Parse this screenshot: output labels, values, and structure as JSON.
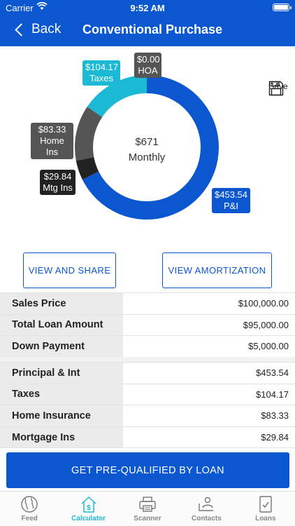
{
  "status_bar": {
    "carrier": "Carrier",
    "time": "9:52 AM"
  },
  "header": {
    "back_label": "Back",
    "title": "Conventional Purchase"
  },
  "chart_data": {
    "type": "pie",
    "center_value": "$671",
    "center_label": "Monthly",
    "slices": [
      {
        "name": "P&I",
        "label": "$453.54",
        "value": 453.54,
        "color": "#0a57cf"
      },
      {
        "name": "Mtg Ins",
        "label": "$29.84",
        "value": 29.84,
        "color": "#222222"
      },
      {
        "name": "Home Ins",
        "label": "$83.33",
        "value": 83.33,
        "color": "#555555"
      },
      {
        "name": "Taxes",
        "label": "$104.17",
        "value": 104.17,
        "color": "#1cb9d5"
      },
      {
        "name": "HOA",
        "label": "$0.00",
        "value": 0.0,
        "color": "#555555"
      }
    ]
  },
  "save_label": "Save",
  "buttons": {
    "view_share": "VIEW AND SHARE",
    "view_amort": "VIEW AMORTIZATION",
    "prequal": "GET PRE-QUALIFIED BY LOAN"
  },
  "summary_rows": [
    {
      "label": "Sales Price",
      "value": "$100,000.00"
    },
    {
      "label": "Total Loan Amount",
      "value": "$95,000.00"
    },
    {
      "label": "Down Payment",
      "value": "$5,000.00"
    }
  ],
  "payment_rows": [
    {
      "label": "Principal & Int",
      "value": "$453.54"
    },
    {
      "label": "Taxes",
      "value": "$104.17"
    },
    {
      "label": "Home Insurance",
      "value": "$83.33"
    },
    {
      "label": "Mortgage Ins",
      "value": "$29.84"
    }
  ],
  "tabs": [
    {
      "label": "Feed",
      "icon": "globe-icon"
    },
    {
      "label": "Calculator",
      "icon": "calculator-house-icon",
      "active": true
    },
    {
      "label": "Scanner",
      "icon": "printer-icon"
    },
    {
      "label": "Contacts",
      "icon": "contacts-icon"
    },
    {
      "label": "Loans",
      "icon": "document-check-icon"
    }
  ],
  "colors": {
    "brand": "#0a57cf",
    "accent": "#1cb9d5"
  }
}
